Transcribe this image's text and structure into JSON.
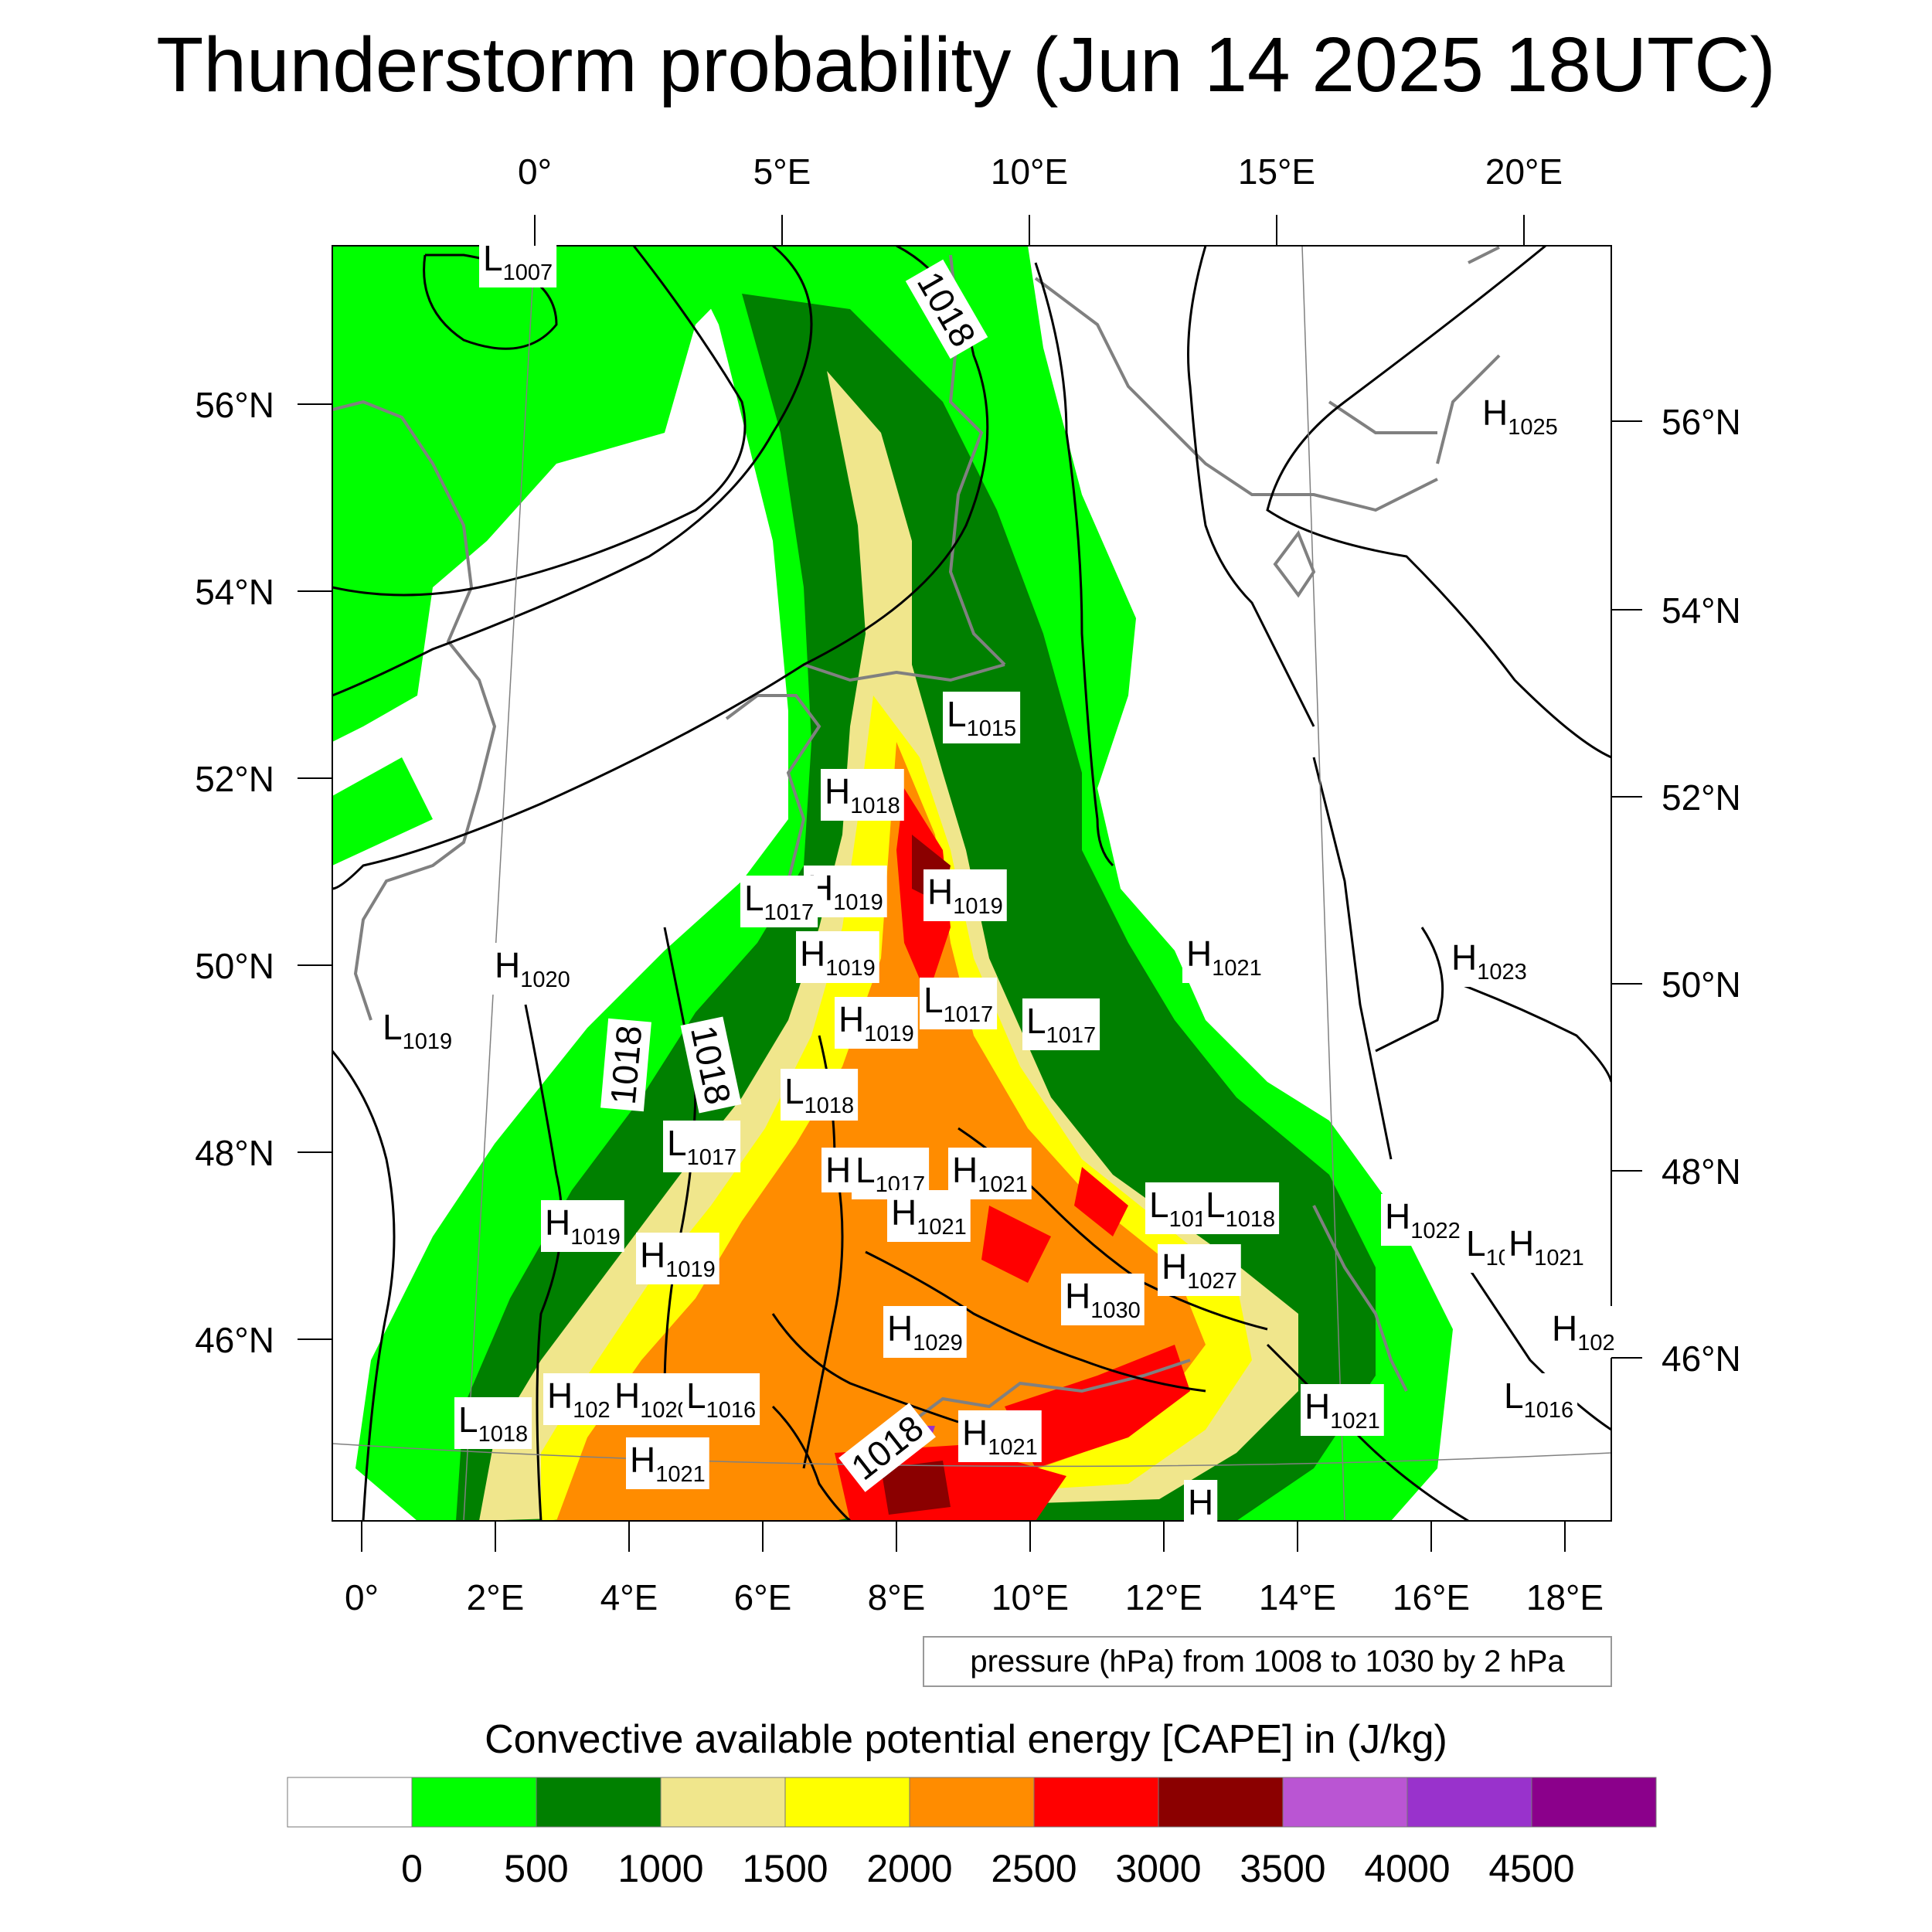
{
  "title": "Thunderstorm probability (Jun 14 2025 18UTC)",
  "axes": {
    "top_lon": [
      "0°",
      "5°E",
      "10°E",
      "15°E",
      "20°E"
    ],
    "bottom_lon": [
      "0°",
      "2°E",
      "4°E",
      "6°E",
      "8°E",
      "10°E",
      "12°E",
      "14°E",
      "16°E",
      "18°E"
    ],
    "left_lat": [
      "56°N",
      "54°N",
      "52°N",
      "50°N",
      "48°N",
      "46°N"
    ],
    "right_lat": [
      "56°N",
      "54°N",
      "52°N",
      "50°N",
      "48°N",
      "46°N"
    ]
  },
  "contour_note": "pressure (hPa) from 1008 to 1030 by 2 hPa",
  "contour_labels": [
    "1018",
    "1018",
    "1018",
    "1018"
  ],
  "pressure_centers": [
    {
      "t": "L",
      "v": "1007"
    },
    {
      "t": "H",
      "v": "1025"
    },
    {
      "t": "L",
      "v": "1015"
    },
    {
      "t": "H",
      "v": "1018"
    },
    {
      "t": "H",
      "v": "1019"
    },
    {
      "t": "H",
      "v": "1019"
    },
    {
      "t": "L",
      "v": "1017"
    },
    {
      "t": "H",
      "v": "1019"
    },
    {
      "t": "H",
      "v": "1020"
    },
    {
      "t": "H",
      "v": "1021"
    },
    {
      "t": "H",
      "v": "1023"
    },
    {
      "t": "L",
      "v": "1019"
    },
    {
      "t": "L",
      "v": "1017"
    },
    {
      "t": "H",
      "v": "1019"
    },
    {
      "t": "L",
      "v": "1017"
    },
    {
      "t": "L",
      "v": "1018"
    },
    {
      "t": "L",
      "v": "1017"
    },
    {
      "t": "H",
      "v": ""
    },
    {
      "t": "L",
      "v": "1017"
    },
    {
      "t": "H",
      "v": "1021"
    },
    {
      "t": "H",
      "v": "1021"
    },
    {
      "t": "L",
      "v": "101"
    },
    {
      "t": "L",
      "v": "1018"
    },
    {
      "t": "H",
      "v": "1022"
    },
    {
      "t": "L",
      "v": "10"
    },
    {
      "t": "H",
      "v": "1021"
    },
    {
      "t": "H",
      "v": "1019"
    },
    {
      "t": "H",
      "v": "1019"
    },
    {
      "t": "H",
      "v": "1027"
    },
    {
      "t": "H",
      "v": "1030"
    },
    {
      "t": "H",
      "v": "1029"
    },
    {
      "t": "H",
      "v": "102"
    },
    {
      "t": "H",
      "v": "102"
    },
    {
      "t": "H",
      "v": "1021"
    },
    {
      "t": "H",
      "v": "1021"
    },
    {
      "t": "L",
      "v": "1016"
    },
    {
      "t": "L",
      "v": "1018"
    },
    {
      "t": "H",
      "v": "102"
    },
    {
      "t": "H",
      "v": "1020"
    },
    {
      "t": "L",
      "v": "1016"
    },
    {
      "t": "H",
      "v": "1021"
    },
    {
      "t": "H",
      "v": ""
    }
  ],
  "colorbar": {
    "title": "Convective available potential energy [CAPE] in (J/kg)",
    "ticks": [
      "0",
      "500",
      "1000",
      "1500",
      "2000",
      "2500",
      "3000",
      "3500",
      "4000",
      "4500"
    ],
    "colors": [
      "#ffffff",
      "#00ff00",
      "#008000",
      "#f0e68c",
      "#ffff00",
      "#ff8c00",
      "#ff0000",
      "#8b0000",
      "#ba55d3",
      "#9932cc",
      "#8b008b"
    ]
  },
  "colors": {
    "coast": "#808080",
    "contour": "#000000"
  }
}
